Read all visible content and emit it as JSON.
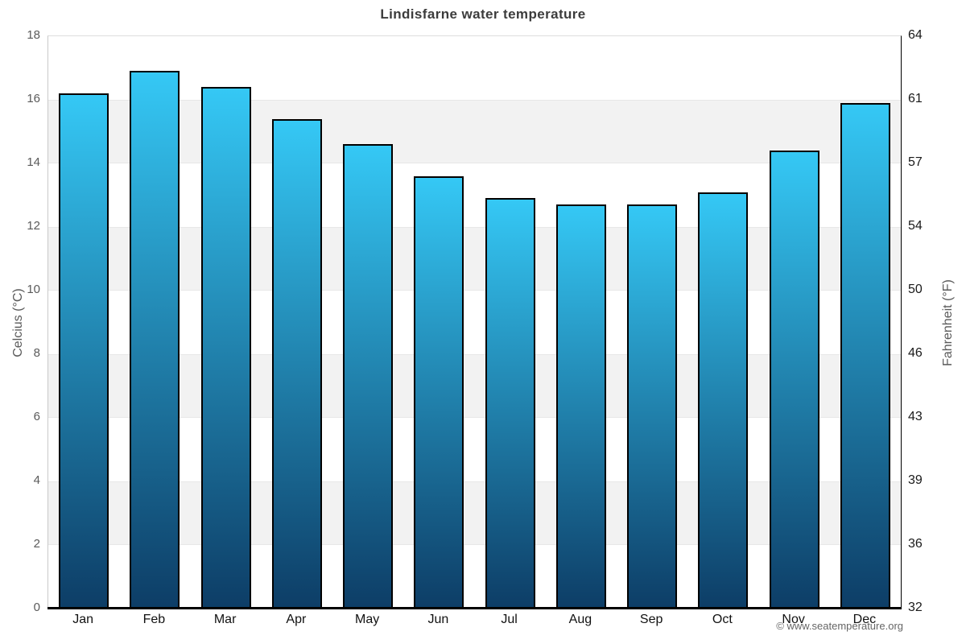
{
  "chart_data": {
    "type": "bar",
    "title": "Lindisfarne water temperature",
    "categories": [
      "Jan",
      "Feb",
      "Mar",
      "Apr",
      "May",
      "Jun",
      "Jul",
      "Aug",
      "Sep",
      "Oct",
      "Nov",
      "Dec"
    ],
    "values": [
      16.2,
      16.9,
      16.4,
      15.4,
      14.6,
      13.6,
      12.9,
      12.7,
      12.7,
      13.1,
      14.4,
      15.9
    ],
    "ylabel_left": "Celcius (°C)",
    "ylabel_right": "Fahrenheit (°F)",
    "ylim_celsius": [
      0,
      18
    ],
    "celsius_ticks": [
      0,
      2,
      4,
      6,
      8,
      10,
      12,
      14,
      16,
      18
    ],
    "fahrenheit_ticks": [
      32,
      36,
      39,
      43,
      46,
      50,
      54,
      57,
      61,
      64
    ],
    "band_ranges_celsius": [
      [
        2,
        4
      ],
      [
        6,
        8
      ],
      [
        10,
        12
      ],
      [
        14,
        16
      ]
    ],
    "grid": "alternating-horizontal-bands",
    "legend": "none"
  },
  "footer": {
    "credit": "© www.seatemperature.org"
  },
  "colors": {
    "bar_gradient_top": "#35c8f5",
    "bar_gradient_bottom": "#0d3d66",
    "bar_border": "#000000",
    "band_fill": "#f2f2f2",
    "title_text": "#3c3c3c",
    "axis_text_left": "#5a5a5a",
    "axis_text_right": "#1a1a1a",
    "month_text": "#111111",
    "footer_text": "#666666",
    "left_axis_line": "#c9c9c9",
    "right_axis_line": "#000000",
    "baseline": "#000000"
  }
}
